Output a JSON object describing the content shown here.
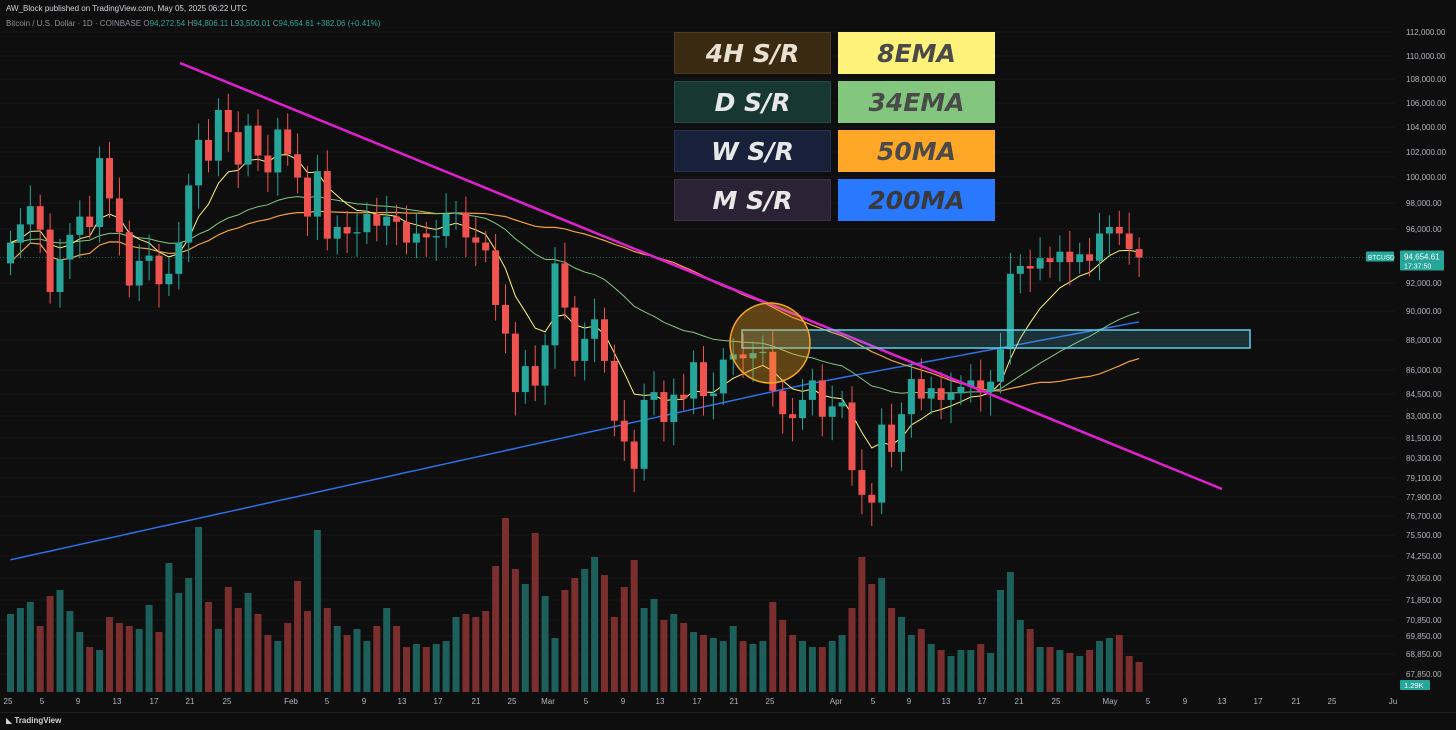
{
  "header": {
    "publisher": "AW_Block published on TradingView.com, May 05, 2025 06:22 UTC",
    "symbol_line": "Bitcoin / U.S. Dollar · 1D · COINBASE",
    "ohlc": {
      "o_label": "O",
      "o": "94,272.54",
      "h_label": "H",
      "h": "94,806.11",
      "l_label": "L",
      "l": "93,500.01",
      "c_label": "C",
      "c": "94,654.61",
      "change": "+382.06 (+0.41%)"
    }
  },
  "legend": [
    {
      "label": "4H S/R",
      "bg": "#3b2a12",
      "border": "#4d3a1f",
      "color": "#e8e0d0"
    },
    {
      "label": "8EMA",
      "bg": "#fff27a",
      "border": "#fff27a",
      "color": "#4a4a4a"
    },
    {
      "label": "D S/R",
      "bg": "#173733",
      "border": "#21504a",
      "color": "#e8e8e8"
    },
    {
      "label": "34EMA",
      "bg": "#82c77d",
      "border": "#82c77d",
      "color": "#4a4a4a"
    },
    {
      "label": "W S/R",
      "bg": "#17223a",
      "border": "#253456",
      "color": "#e8e8e8"
    },
    {
      "label": "50MA",
      "bg": "#ffa726",
      "border": "#ffa726",
      "color": "#4a4a4a"
    },
    {
      "label": "M S/R",
      "bg": "#2c2236",
      "border": "#40324f",
      "color": "#e8e8e8"
    },
    {
      "label": "200MA",
      "bg": "#2979ff",
      "border": "#2979ff",
      "color": "#3a3a3a"
    }
  ],
  "price_axis": {
    "labels": [
      "112,000.00",
      "110,000.00",
      "108,000.00",
      "106,000.00",
      "104,000.00",
      "102,000.00",
      "100,000.00",
      "98,000.00",
      "96,000.00",
      "92,000.00",
      "90,000.00",
      "88,000.00",
      "86,000.00",
      "84,500.00",
      "83,000.00",
      "81,500.00",
      "80,300.00",
      "79,100.00",
      "77,900.00",
      "76,700.00",
      "75,500.00",
      "74,250.00",
      "73,050.00",
      "71,850.00",
      "70,850.00",
      "69,850.00",
      "68,850.00",
      "67,850.00"
    ],
    "current_symbol": "BTCUSD",
    "current_price": "94,654.61",
    "countdown": "17:37:50",
    "volume_badge": "1.29K"
  },
  "time_axis": [
    "25",
    "5",
    "9",
    "13",
    "17",
    "21",
    "25",
    "Feb",
    "5",
    "9",
    "13",
    "17",
    "21",
    "25",
    "Mar",
    "5",
    "9",
    "13",
    "17",
    "21",
    "25",
    "Apr",
    "5",
    "9",
    "13",
    "17",
    "21",
    "25",
    "May",
    "5",
    "9",
    "13",
    "17",
    "21",
    "25",
    "Ju"
  ],
  "colors": {
    "up": "#26a69a",
    "down": "#ef5350",
    "up_vol": "#1d5f5a",
    "down_vol": "#7a2e2e",
    "trendline": "#e020d0",
    "zone": "#5fd0e8",
    "circle": "#f5a623",
    "ema8": "#fff27a",
    "ema34": "#82c77d",
    "ma50": "#f0a040",
    "ma200": "#2f6fe8"
  },
  "chart_data": {
    "type": "candlestick",
    "title": "Bitcoin / U.S. Dollar · 1D · COINBASE",
    "x_start": "2024-12-25",
    "x_end": "2025-05-05",
    "ylim": [
      67850,
      112000
    ],
    "last_close": 94654.61,
    "closes": [
      95800,
      97200,
      98600,
      96800,
      92000,
      94500,
      96400,
      97800,
      97000,
      102300,
      99200,
      96600,
      92500,
      94400,
      94800,
      92600,
      93400,
      95800,
      100200,
      103700,
      102100,
      106000,
      104300,
      101800,
      104800,
      102500,
      101200,
      104500,
      102600,
      100800,
      97800,
      101300,
      96100,
      97000,
      96500,
      96600,
      98000,
      97100,
      97800,
      97400,
      95800,
      96500,
      96200,
      96300,
      98000,
      98100,
      96200,
      95800,
      95200,
      91000,
      88800,
      84300,
      86300,
      84800,
      87900,
      94200,
      90800,
      86700,
      88400,
      89900,
      86700,
      82100,
      80500,
      78400,
      83700,
      84300,
      82000,
      84100,
      83800,
      86600,
      84000,
      84200,
      86800,
      87200,
      86900,
      87300,
      87400,
      84400,
      82600,
      82300,
      83700,
      85200,
      82400,
      83200,
      83500,
      78300,
      76400,
      75800,
      81800,
      79700,
      82600,
      85300,
      83800,
      84600,
      83700,
      84200,
      84700,
      85200,
      84300,
      85100,
      87600,
      93400,
      94000,
      93800,
      94600,
      94300,
      95100,
      94300,
      94900,
      94400,
      96500,
      97000,
      96500,
      95300,
      94654.61
    ],
    "volume": [
      0.26,
      0.28,
      0.3,
      0.22,
      0.32,
      0.34,
      0.27,
      0.2,
      0.15,
      0.14,
      0.25,
      0.23,
      0.22,
      0.21,
      0.29,
      0.2,
      0.43,
      0.33,
      0.38,
      0.55,
      0.3,
      0.21,
      0.35,
      0.28,
      0.33,
      0.26,
      0.19,
      0.17,
      0.23,
      0.37,
      0.27,
      0.54,
      0.28,
      0.22,
      0.19,
      0.21,
      0.17,
      0.22,
      0.28,
      0.22,
      0.15,
      0.16,
      0.15,
      0.16,
      0.17,
      0.25,
      0.26,
      0.25,
      0.27,
      0.42,
      0.58,
      0.41,
      0.36,
      0.53,
      0.32,
      0.18,
      0.34,
      0.38,
      0.41,
      0.45,
      0.39,
      0.25,
      0.35,
      0.44,
      0.28,
      0.31,
      0.24,
      0.26,
      0.23,
      0.2,
      0.19,
      0.18,
      0.17,
      0.22,
      0.17,
      0.16,
      0.17,
      0.3,
      0.24,
      0.19,
      0.17,
      0.15,
      0.15,
      0.17,
      0.19,
      0.28,
      0.45,
      0.36,
      0.38,
      0.28,
      0.25,
      0.19,
      0.21,
      0.16,
      0.14,
      0.12,
      0.14,
      0.14,
      0.16,
      0.13,
      0.34,
      0.4,
      0.24,
      0.21,
      0.15,
      0.15,
      0.14,
      0.13,
      0.12,
      0.14,
      0.17,
      0.18,
      0.19,
      0.12,
      0.1
    ],
    "overlays": [
      "8EMA",
      "34EMA",
      "50MA",
      "200MA",
      "4H S/R zone 86,800-88,200",
      "descending trendline"
    ]
  }
}
